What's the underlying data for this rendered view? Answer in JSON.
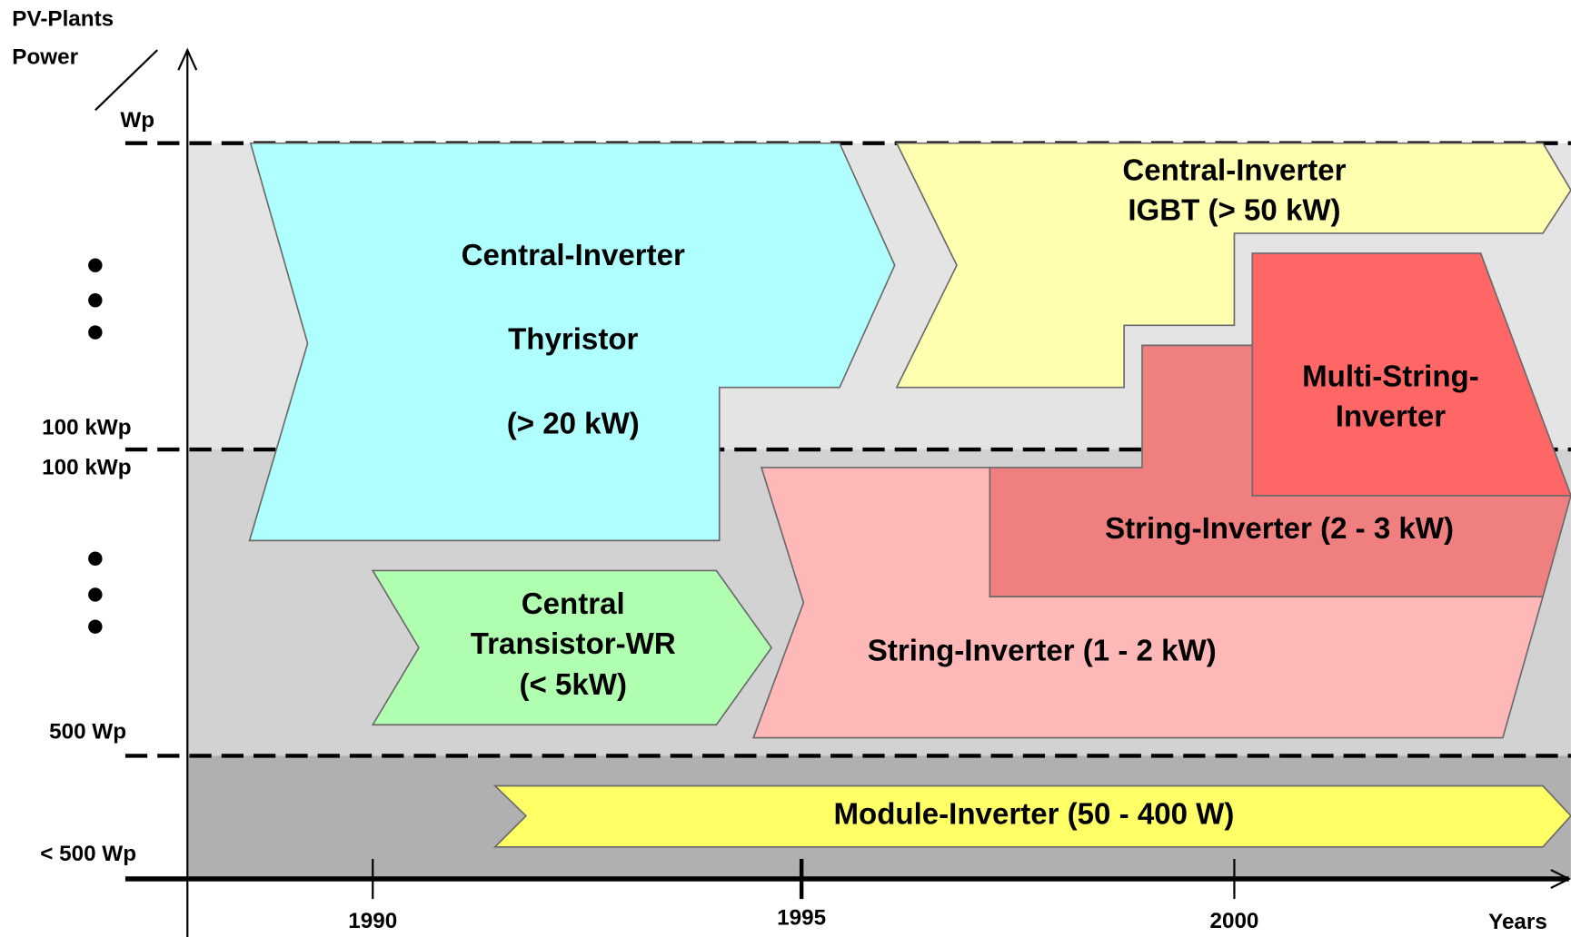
{
  "axis": {
    "y_label": [
      "PV-Plants",
      "Power",
      "Wp"
    ],
    "x_label": "Years"
  },
  "y_labels": [
    "100 kWp",
    "100 kWp",
    "500 Wp",
    "< 500 Wp"
  ],
  "x_labels": [
    "1990",
    "1995",
    "2000"
  ],
  "blocks": [
    {
      "lines": [
        "Central-Inverter",
        "Thyristor",
        "(> 20 kW)"
      ]
    },
    {
      "lines": [
        "Central-Inverter",
        "IGBT (> 50 kW)"
      ]
    },
    {
      "lines": [
        "Multi-String-",
        "Inverter"
      ]
    },
    {
      "lines": [
        "String-Inverter (2 - 3 kW)"
      ]
    },
    {
      "lines": [
        "Central",
        "Transistor-WR",
        "(< 5kW)"
      ]
    },
    {
      "lines": [
        "String-Inverter (1 - 2 kW)"
      ]
    },
    {
      "lines": [
        "Module-Inverter (50 - 400 W)"
      ]
    }
  ]
}
